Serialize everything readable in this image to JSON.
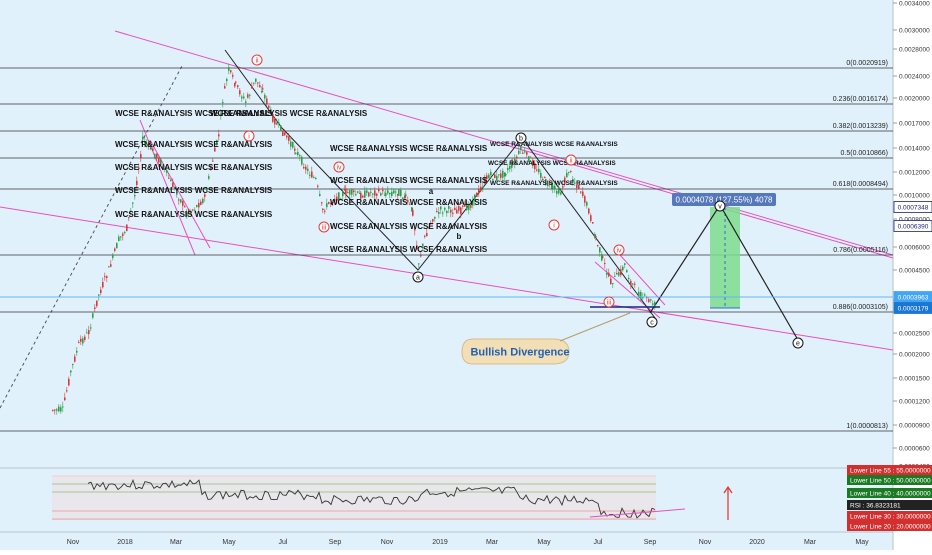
{
  "chart_data": {
    "type": "candlestick",
    "title": "",
    "xlabel": "",
    "ylabel": "",
    "ylim": [
      0.0003,
      0.0034
    ],
    "x_ticks": [
      "Nov",
      "2018",
      "Mar",
      "May",
      "Jul",
      "Sep",
      "Nov",
      "2019",
      "Mar",
      "May",
      "Jul",
      "Sep",
      "Nov",
      "2020",
      "Mar",
      "May"
    ],
    "y_ticks": [
      "0.0034000",
      "0.0030000",
      "0.0028000",
      "0.0024000",
      "0.0020000",
      "0.0017000",
      "0.0014000",
      "0.0012000",
      "0.0010000",
      "0.0008000",
      "0.0006000",
      "0.0004500",
      "0.0003500",
      "0.0002500",
      "0.0002000",
      "0.0001500",
      "0.0001200",
      "0.0000900",
      "0.0000600",
      "0.0000430"
    ],
    "price_tags": [
      {
        "label": "0.0007348",
        "kind": "target"
      },
      {
        "label": "0.0006390",
        "kind": "level"
      },
      {
        "label": "0.0003963",
        "kind": "last"
      },
      {
        "label": "0.0003179",
        "kind": "current"
      }
    ],
    "fib_levels": [
      {
        "label": "0(0.0020919)"
      },
      {
        "label": "0.236(0.0016174)"
      },
      {
        "label": "0.382(0.0013239)"
      },
      {
        "label": "0.5(0.0010866)"
      },
      {
        "label": "0.618(0.0008494)"
      },
      {
        "label": "0.786(0.0005116)"
      },
      {
        "label": "0.886(0.0003105)"
      },
      {
        "label": "1(0.0000813)"
      }
    ],
    "projection_label": "0.0004078 (127.55%) 4078",
    "callout": "Bullish Divergence",
    "wave_labels": [
      "ii",
      "i",
      "iv",
      "iii",
      "a",
      "b",
      "c",
      "i",
      "ii",
      "iii",
      "iv",
      "v",
      "c",
      "e",
      "a",
      "b"
    ],
    "watermarks": [
      "WCSE R&ANALYSIS WCSE R&ANALYSIS",
      "WCSE R&ANALYSIS WCSE R&ANALYSIS",
      "WCSE R&ANALYSIS WCSE R&ANALYSIS",
      "WCSE R&ANALYSIS WCSE R&ANALYSIS",
      "WCSE R&ANALYSIS WCSE R&ANALYSIS",
      "WCSE R&ANALYSIS WCSE R&ANALYSIS",
      "WCSE R&ANALYSIS WCSE R&ANALYSIS",
      "WCSE R&ANALYSIS WCSE R&ANALYSIS",
      "WCSE R&ANALYSIS WCSE R&ANALYSIS",
      "WCSE R&ANALYSIS WCSE R&ANALYSIS",
      "WCSE R&ANALYSIS WCSE R&ANALYSIS",
      "WCSE R&ANALYSIS WCSE R&ANALYSIS",
      "WCSE R&ANALYSIS WCSE R&ANALYSIS",
      "WCSE R&ANALYSIS WCSE R&ANALYSIS"
    ],
    "rsi_tags": [
      {
        "label": "Lower Line 55 : 55.0000000",
        "color": "#d32f2f"
      },
      {
        "label": "Lower Line 50 : 50.0000000",
        "color": "#1b7a23"
      },
      {
        "label": "Lower Line 40 : 40.0000000",
        "color": "#1b7a23"
      },
      {
        "label": "RSI : 36.8323181",
        "color": "#222222"
      },
      {
        "label": "Lower Line 30 : 30.0000000",
        "color": "#d32f2f"
      },
      {
        "label": "Lower Line 20 : 20.0000000",
        "color": "#d32f2f"
      }
    ],
    "colors": {
      "background": "#e1f1fb",
      "up_candle": "#2e9e4a",
      "down_candle": "#d43b3b",
      "channel_line": "#e84fc0",
      "fib_line": "#333333",
      "projection_fill": "#7ddc8c",
      "callout_fill": "#f3dfb5",
      "callout_text": "#1f5fb5",
      "target_tag": "#5577bb",
      "current_tag": "#1976d2"
    }
  }
}
